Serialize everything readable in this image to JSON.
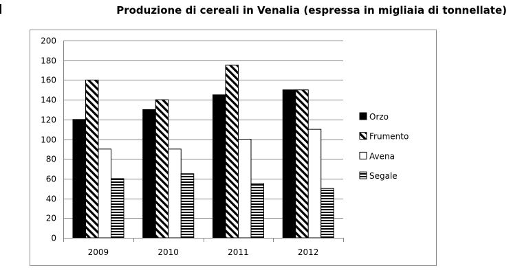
{
  "chart_data": {
    "type": "bar",
    "title": "Produzione di cereali in Venalia (espressa in migliaia di tonnellate)",
    "categories": [
      "2009",
      "2010",
      "2011",
      "2012"
    ],
    "series": [
      {
        "name": "Orzo",
        "values": [
          120,
          130,
          145,
          150
        ],
        "pattern": "solid-black"
      },
      {
        "name": "Frumento",
        "values": [
          160,
          140,
          175,
          150
        ],
        "pattern": "diagonal-hatch"
      },
      {
        "name": "Avena",
        "values": [
          90,
          90,
          100,
          110
        ],
        "pattern": "white"
      },
      {
        "name": "Segale",
        "values": [
          60,
          65,
          55,
          50
        ],
        "pattern": "horizontal-lines"
      }
    ],
    "yticks": [
      "0",
      "20",
      "40",
      "60",
      "80",
      "100",
      "120",
      "140",
      "160",
      "180",
      "200"
    ],
    "ylim": [
      0,
      200
    ],
    "grid": true,
    "legend_position": "right"
  },
  "colors": {
    "bar_fill": "#000000",
    "bar_outline": "#000000",
    "grid": "#868686",
    "frame": "#8c8c8c"
  }
}
